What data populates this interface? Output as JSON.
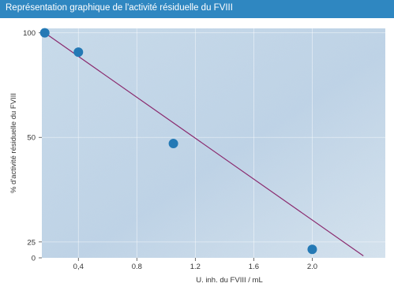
{
  "header": {
    "title": "Représentation graphique de l'activité résiduelle du FVIII"
  },
  "colors": {
    "title_bar": "#2f87c1",
    "plot_background": "#c5d8e8",
    "point_fill": "#2479b5",
    "line": "#8a2a6e"
  },
  "chart_data": {
    "type": "line",
    "title": "Représentation graphique de l'activité résiduelle du FVIII",
    "xlabel": "U. inh. du FVIII / mL",
    "ylabel": "% d'activité résiduelle du FVIII",
    "y_scale": "log",
    "xlim": [
      0.15,
      2.5
    ],
    "ylim": [
      22.5,
      103
    ],
    "x_ticks": [
      0.4,
      0.8,
      1.2,
      1.6,
      2.0
    ],
    "x_tick_labels": [
      "0,4",
      "0.8",
      "1.2",
      "1.6",
      "2.0"
    ],
    "y_ticks": [
      100,
      50,
      25
    ],
    "y_tick_labels": [
      "100",
      "50",
      "25"
    ],
    "y_zero_label": "0",
    "grid": true,
    "series": [
      {
        "type": "scatter",
        "points": [
          {
            "x": 0.17,
            "y": 100
          },
          {
            "x": 0.4,
            "y": 88
          },
          {
            "x": 1.05,
            "y": 48
          },
          {
            "x": 2.0,
            "y": 23.8
          }
        ]
      },
      {
        "type": "line",
        "points": [
          {
            "x": 0.17,
            "y": 100
          },
          {
            "x": 2.35,
            "y": 22.8
          }
        ]
      }
    ]
  }
}
